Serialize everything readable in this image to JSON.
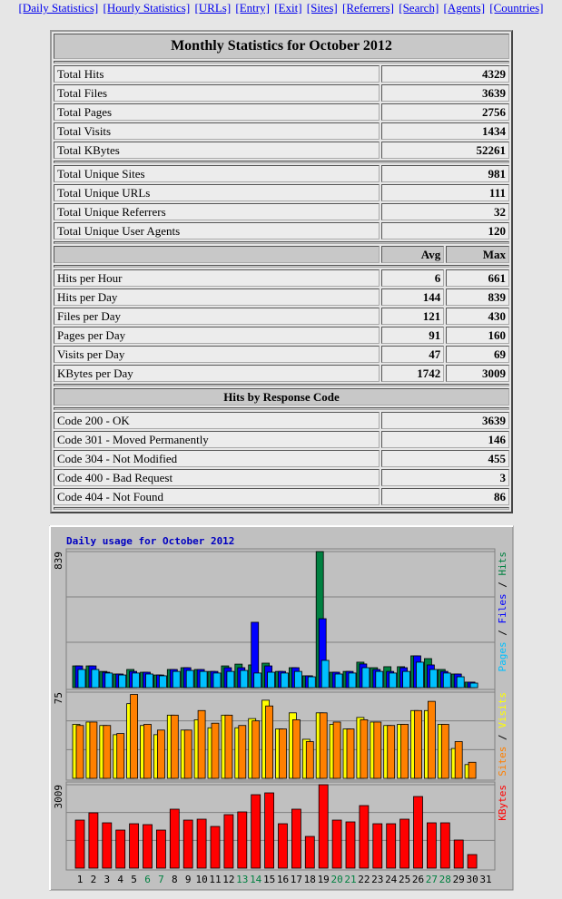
{
  "nav": [
    "[Daily Statistics]",
    "[Hourly Statistics]",
    "[URLs]",
    "[Entry]",
    "[Exit]",
    "[Sites]",
    "[Referrers]",
    "[Search]",
    "[Agents]",
    "[Countries]"
  ],
  "table": {
    "title": "Monthly Statistics for October 2012",
    "totals": [
      [
        "Total Hits",
        4329
      ],
      [
        "Total Files",
        3639
      ],
      [
        "Total Pages",
        2756
      ],
      [
        "Total Visits",
        1434
      ],
      [
        "Total KBytes",
        52261
      ]
    ],
    "uniques": [
      [
        "Total Unique Sites",
        981
      ],
      [
        "Total Unique URLs",
        111
      ],
      [
        "Total Unique Referrers",
        32
      ],
      [
        "Total Unique User Agents",
        120
      ]
    ],
    "avg_header": "Avg",
    "max_header": "Max",
    "rates": [
      [
        "Hits per Hour",
        6,
        661
      ],
      [
        "Hits per Day",
        144,
        839
      ],
      [
        "Files per Day",
        121,
        430
      ],
      [
        "Pages per Day",
        91,
        160
      ],
      [
        "Visits per Day",
        47,
        69
      ],
      [
        "KBytes per Day",
        1742,
        3009
      ]
    ],
    "codes_title": "Hits by Response Code",
    "codes": [
      [
        "Code 200 - OK",
        3639
      ],
      [
        "Code 301 - Moved Permanently",
        146
      ],
      [
        "Code 304 - Not Modified",
        455
      ],
      [
        "Code 400 - Bad Request",
        3
      ],
      [
        "Code 404 - Not Found",
        86
      ]
    ]
  },
  "chart_data": {
    "type": "bar",
    "title": "Daily usage for October 2012",
    "legend_separator": " / ",
    "categories": [
      "1",
      "2",
      "3",
      "4",
      "5",
      "6",
      "7",
      "8",
      "9",
      "10",
      "11",
      "12",
      "13",
      "14",
      "15",
      "16",
      "17",
      "18",
      "19",
      "20",
      "21",
      "22",
      "23",
      "24",
      "25",
      "26",
      "27",
      "28",
      "29",
      "30",
      "31"
    ],
    "category_colors": [
      "#000000",
      "#000000",
      "#000000",
      "#000000",
      "#000000",
      "#008040",
      "#008040",
      "#000000",
      "#000000",
      "#000000",
      "#000000",
      "#000000",
      "#008040",
      "#008040",
      "#000000",
      "#000000",
      "#000000",
      "#000000",
      "#000000",
      "#008040",
      "#008040",
      "#000000",
      "#000000",
      "#000000",
      "#000000",
      "#000000",
      "#008040",
      "#008040",
      "#000000",
      "#000000",
      "#000000"
    ],
    "panels": [
      {
        "ylim": [
          0,
          839
        ],
        "yticks": [
          839
        ],
        "series": [
          {
            "name": "Hits",
            "color": "#008040",
            "values": [
              134,
              134,
              100,
              84,
              112,
              95,
              78,
              112,
              123,
              112,
              100,
              134,
              145,
              140,
              151,
              100,
              123,
              73,
              839,
              95,
              100,
              157,
              123,
              129,
              129,
              196,
              179,
              112,
              84,
              34,
              0
            ]
          },
          {
            "name": "Files",
            "color": "#0000ff",
            "values": [
              134,
              134,
              95,
              84,
              100,
              95,
              78,
              112,
              123,
              112,
              100,
              123,
              123,
              403,
              134,
              100,
              123,
              73,
              425,
              95,
              100,
              146,
              112,
              100,
              123,
              196,
              140,
              100,
              84,
              34,
              0
            ]
          },
          {
            "name": "Pages",
            "color": "#00c0ff",
            "values": [
              112,
              112,
              90,
              78,
              90,
              84,
              73,
              100,
              106,
              100,
              90,
              100,
              106,
              90,
              95,
              90,
              100,
              67,
              168,
              84,
              90,
              123,
              100,
              90,
              100,
              157,
              112,
              90,
              67,
              28,
              0
            ]
          }
        ]
      },
      {
        "ylim": [
          0,
          75
        ],
        "yticks": [
          75
        ],
        "series": [
          {
            "name": "Visits",
            "color": "#ffff00",
            "values": [
              47,
              49,
              46,
              38,
              65,
              46,
              38,
              55,
              42,
              51,
              44,
              55,
              44,
              52,
              68,
              43,
              57,
              34,
              57,
              47,
              43,
              53,
              49,
              46,
              47,
              59,
              59,
              47,
              26,
              12,
              0
            ]
          },
          {
            "name": "Sites",
            "color": "#ff8000",
            "values": [
              46,
              49,
              46,
              39,
              73,
              47,
              42,
              55,
              42,
              59,
              48,
              55,
              46,
              50,
              63,
              43,
              51,
              32,
              57,
              49,
              43,
              51,
              49,
              46,
              47,
              59,
              67,
              47,
              32,
              14,
              0
            ]
          }
        ]
      },
      {
        "ylim": [
          0,
          3009
        ],
        "yticks": [
          3009
        ],
        "series": [
          {
            "name": "KBytes",
            "color": "#ff0000",
            "values": [
              1733,
              1995,
              1635,
              1373,
              1602,
              1570,
              1373,
              2126,
              1733,
              1766,
              1504,
              1929,
              2028,
              2649,
              2714,
              1602,
              2126,
              1144,
              3009,
              1733,
              1668,
              2256,
              1602,
              1602,
              1766,
              2583,
              1635,
              1635,
              1014,
              490,
              0
            ]
          }
        ]
      }
    ]
  }
}
